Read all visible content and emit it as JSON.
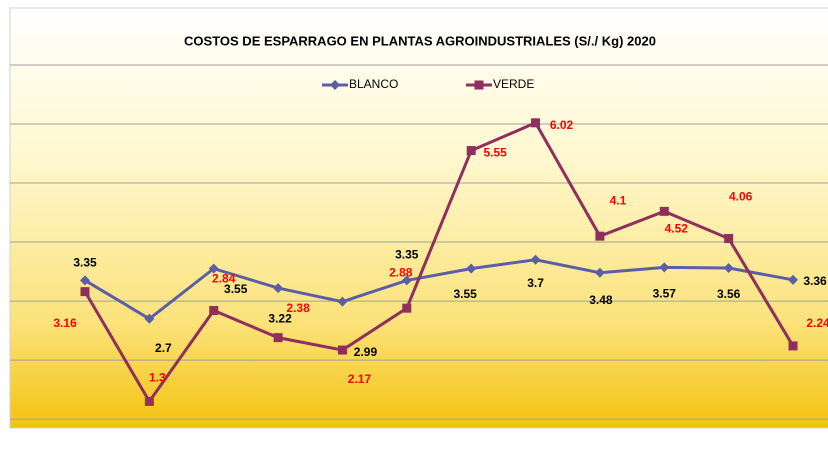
{
  "chart_data": {
    "type": "line",
    "title": "COSTOS DE ESPARRAGO EN PLANTAS AGROINDUSTRIALES (S/./ Kg) 2020",
    "series": [
      {
        "name": "BLANCO",
        "color": "#5b5ea6",
        "marker": "diamond",
        "label_color": "#000000",
        "values": [
          3.35,
          2.7,
          3.55,
          3.22,
          2.99,
          3.35,
          3.55,
          3.7,
          3.48,
          3.57,
          3.56,
          3.36
        ]
      },
      {
        "name": "VERDE",
        "color": "#8e2f5e",
        "marker": "square",
        "label_color": "#ff0000",
        "values": [
          3.16,
          1.3,
          2.84,
          2.38,
          2.17,
          2.88,
          5.55,
          6.02,
          4.1,
          4.52,
          4.06,
          2.24
        ]
      }
    ],
    "ylim": [
      0.9,
      7
    ],
    "yticks": [
      1,
      2,
      3,
      4,
      5,
      6,
      7
    ],
    "grid": true,
    "legend": "top"
  }
}
